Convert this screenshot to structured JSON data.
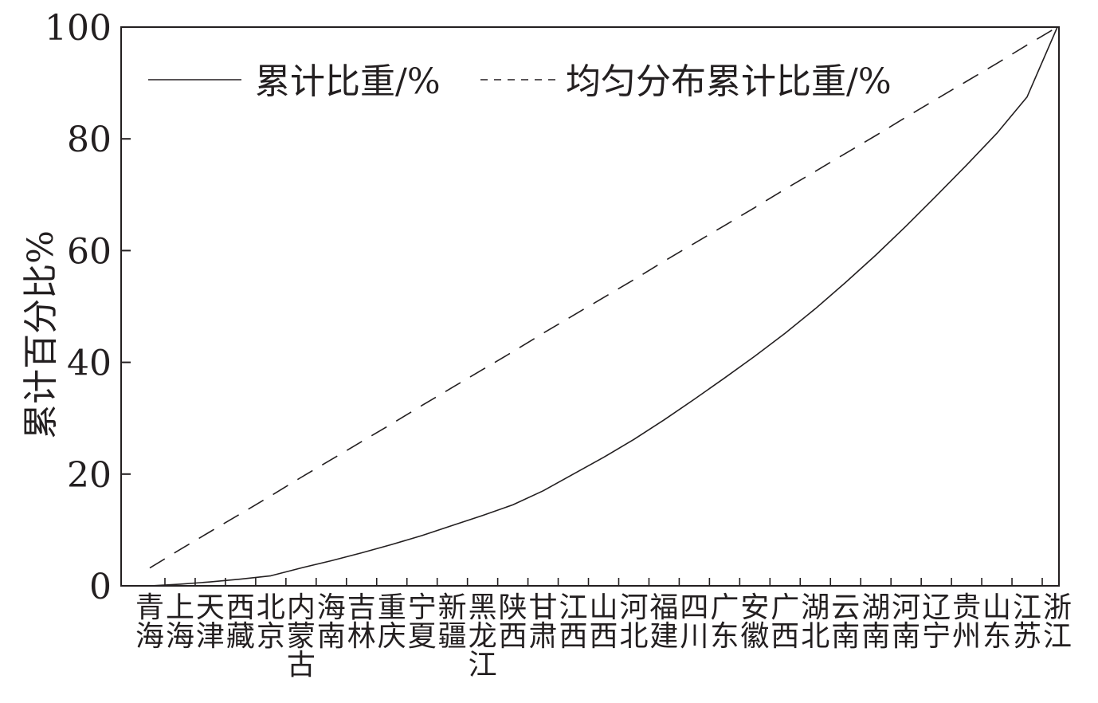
{
  "chart_data": {
    "type": "line",
    "ylabel": "累计百分比%",
    "xlabel": "",
    "ylim": [
      0,
      100
    ],
    "yticks": [
      0,
      20,
      40,
      60,
      80,
      100
    ],
    "grid": false,
    "legend_position": "top",
    "categories": [
      "青海",
      "上海",
      "天津",
      "西藏",
      "北京",
      "内蒙古",
      "海南",
      "吉林",
      "重庆",
      "宁夏",
      "新疆",
      "黑龙江",
      "陕西",
      "甘肃",
      "江西",
      "山西",
      "河北",
      "福建",
      "四川",
      "广东",
      "安徽",
      "广西",
      "湖北",
      "云南",
      "湖南",
      "河南",
      "辽宁",
      "贵州",
      "山东",
      "江苏",
      "浙江"
    ],
    "series": [
      {
        "name": "累计比重/%",
        "style": "solid",
        "values": [
          0,
          0.3,
          0.7,
          1.2,
          1.8,
          3.2,
          4.5,
          5.9,
          7.4,
          9.0,
          10.8,
          12.6,
          14.5,
          17.0,
          20.0,
          23.0,
          26.2,
          29.7,
          33.4,
          37.2,
          41.1,
          45.2,
          49.6,
          54.3,
          59.2,
          64.4,
          69.8,
          75.3,
          81.0,
          87.5,
          100
        ]
      },
      {
        "name": "均匀分布累计比重/%",
        "style": "dashed",
        "values": [
          3.2,
          6.5,
          9.7,
          12.9,
          16.1,
          19.4,
          22.6,
          25.8,
          29.0,
          32.3,
          35.5,
          38.7,
          41.9,
          45.2,
          48.4,
          51.6,
          54.8,
          58.1,
          61.3,
          64.5,
          67.7,
          71.0,
          74.2,
          77.4,
          80.6,
          83.9,
          87.1,
          90.3,
          93.5,
          96.8,
          100
        ]
      }
    ]
  }
}
